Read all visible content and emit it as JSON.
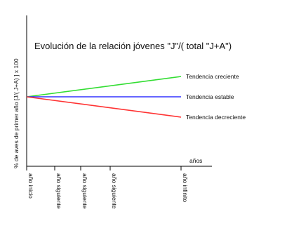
{
  "chart_data": {
    "type": "line",
    "title": "Evolución de la relación jóvenes \"J\"/(  total \"J+A\")",
    "xlabel": "años",
    "ylabel": "% de aves de primer año [J/(  J+A) ] x 100",
    "grid": false,
    "legend": "inline labels at line ends",
    "categories": [
      "año inicio",
      "año siguiente",
      "año siguiente",
      "año siguiente",
      "año infinito"
    ],
    "series": [
      {
        "name": "Tendencia creciente",
        "color": "#33dd33",
        "start": 0,
        "end": 1
      },
      {
        "name": "Tendencia estable",
        "color": "#3333ff",
        "start": 0,
        "end": 0
      },
      {
        "name": "Tendencia decreciente",
        "color": "#ff3333",
        "start": 0,
        "end": -1
      }
    ]
  }
}
